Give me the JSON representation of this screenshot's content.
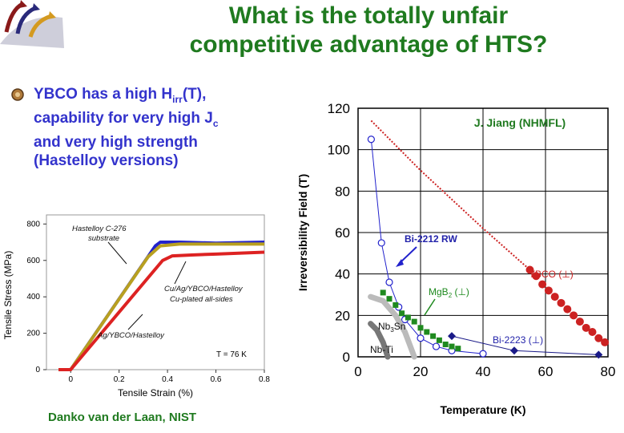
{
  "slide": {
    "title_line1": "What is the totally unfair",
    "title_line2": "competitive advantage of HTS?",
    "logo_name": "arrows-logo",
    "bullet": {
      "part1": "YBCO has a high H",
      "sub1": "irr",
      "part2": "(T),",
      "line2a": "capability for very high J",
      "sub2": "c",
      "line3": "and very high strength",
      "line4": "(Hastelloy versions)"
    },
    "credit": "Danko van der Laan, NIST"
  },
  "chart_data": [
    {
      "type": "line",
      "xlabel": "Tensile Strain (%)",
      "ylabel": "Tensile Stress (MPa)",
      "xlim": [
        -0.1,
        0.8
      ],
      "ylim": [
        0,
        850
      ],
      "xticks": [
        "0",
        "0.2",
        "0.4",
        "0.6",
        "0.8"
      ],
      "yticks": [
        "0",
        "200",
        "400",
        "600",
        "800"
      ],
      "annotations": {
        "a1": "Hastelloy C-276",
        "a2": "substrate",
        "a3": "Cu/Ag/YBCO/Hastelloy",
        "a4": "Cu-plated all-sides",
        "a5": "Ag/YBCO/Hastelloy",
        "temp": "T = 76 K"
      },
      "series": [
        {
          "color": "#2222cc",
          "x": [
            -0.05,
            0.0,
            0.35,
            0.37,
            0.45,
            0.6,
            0.8
          ],
          "y": [
            0,
            0,
            680,
            700,
            700,
            695,
            700
          ]
        },
        {
          "color": "#b8a020",
          "x": [
            -0.05,
            0.0,
            0.32,
            0.37,
            0.45,
            0.6,
            0.8
          ],
          "y": [
            0,
            0,
            620,
            680,
            690,
            690,
            690
          ]
        },
        {
          "color": "#dd2222",
          "x": [
            -0.05,
            0.0,
            0.38,
            0.42,
            0.5,
            0.6,
            0.8
          ],
          "y": [
            0,
            0,
            600,
            625,
            630,
            635,
            645
          ]
        }
      ]
    },
    {
      "type": "scatter",
      "title": "J. Jiang (NHMFL)",
      "xlabel": "Temperature (K)",
      "ylabel": "Irreversibility Field (T)",
      "xlim": [
        0,
        80
      ],
      "ylim": [
        0,
        120
      ],
      "xticks": [
        "0",
        "20",
        "40",
        "60",
        "80"
      ],
      "yticks": [
        "0",
        "20",
        "40",
        "60",
        "80",
        "100",
        "120"
      ],
      "labels": {
        "bi2212": "Bi-2212 RW",
        "mgb2_a": "MgB",
        "mgb2_b": "2",
        "mgb2_c": " (⊥)",
        "nb3sn_a": "Nb",
        "nb3sn_b": "3",
        "nb3sn_c": "Sn",
        "nbti": "Nb-Ti",
        "ybco": "YBCO (⊥)",
        "bi2223": "Bi-2223 (⊥)"
      },
      "series": [
        {
          "color": "#2222cc",
          "marker": "open-circle",
          "x": [
            4.2,
            7.5,
            10,
            13,
            15,
            20,
            25,
            30,
            40
          ],
          "y": [
            105,
            55,
            36,
            24,
            18,
            9,
            5,
            3,
            1.5
          ]
        },
        {
          "color": "#cc2222",
          "marker": "filled-circle",
          "x": [
            55,
            57,
            59,
            61,
            63,
            65,
            67,
            69,
            71,
            73,
            75,
            77,
            79
          ],
          "y": [
            42,
            39,
            35,
            32,
            29,
            26,
            23,
            20,
            17,
            14,
            12,
            9,
            7
          ]
        },
        {
          "color": "#cc2222",
          "marker": "dense",
          "x": [
            4.2,
            20,
            40,
            55
          ],
          "y": [
            114,
            90,
            62,
            42
          ]
        },
        {
          "color": "#1f8a1f",
          "marker": "square",
          "x": [
            8,
            10,
            12,
            14,
            16,
            18,
            20,
            22,
            24,
            26,
            28,
            30,
            32
          ],
          "y": [
            31,
            28,
            25,
            21,
            19,
            17,
            14,
            12,
            10,
            8,
            6,
            5,
            4
          ]
        },
        {
          "color": "#1a1a88",
          "marker": "diamond",
          "x": [
            30,
            50,
            77
          ],
          "y": [
            10,
            3,
            1
          ]
        },
        {
          "color": "#bbbbbb",
          "marker": "band",
          "x": [
            4,
            8,
            12,
            15,
            18
          ],
          "y": [
            29,
            27,
            20,
            12,
            0
          ]
        },
        {
          "color": "#777777",
          "marker": "band",
          "x": [
            4,
            6,
            8,
            9.5
          ],
          "y": [
            16,
            13,
            7,
            0
          ]
        }
      ]
    }
  ]
}
